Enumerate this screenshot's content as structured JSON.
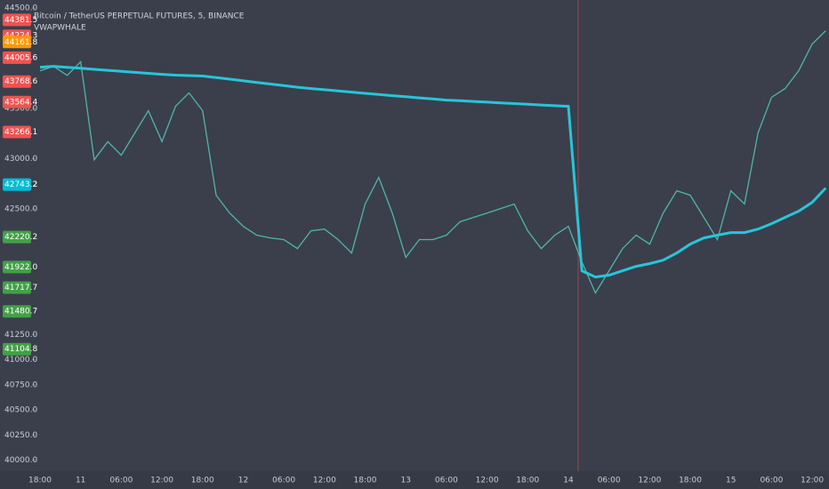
{
  "chart_data": {
    "type": "line",
    "title": "Bitcoin / TetherUS PERPETUAL FUTURES, 5, BINANCE",
    "subtitle": "VWAPWHALE",
    "categories": [
      "18:00",
      null,
      null,
      "11",
      null,
      null,
      "06:00",
      null,
      null,
      "12:00",
      null,
      null,
      "18:00",
      null,
      null,
      "12",
      null,
      null,
      "06:00",
      null,
      null,
      "12:00",
      null,
      null,
      "18:00",
      null,
      null,
      "13",
      null,
      null,
      "06:00",
      null,
      null,
      "12:00",
      null,
      null,
      "18:00",
      null,
      null,
      "14",
      null,
      null,
      "06:00",
      null,
      null,
      "12:00",
      null,
      null,
      "18:00",
      null,
      null,
      "15",
      null,
      null,
      "06:00",
      null,
      null,
      "12:00",
      null
    ],
    "series": [
      {
        "color": "#4db6ac",
        "values": [
          43876,
          43920,
          43830,
          43965,
          42990,
          43170,
          43035,
          43257,
          43478,
          43170,
          43522,
          43655,
          43478,
          42637,
          42460,
          42327,
          42239,
          42212,
          42195,
          42106,
          42283,
          42300,
          42195,
          42062,
          42549,
          42814,
          42460,
          42018,
          42195,
          42195,
          42239,
          42372,
          42416,
          42460,
          42504,
          42549,
          42283,
          42106,
          42239,
          42327,
          41973,
          41664,
          41885,
          42106,
          42239,
          42150,
          42460,
          42681,
          42637,
          42416,
          42195,
          42681,
          42549,
          43257,
          43611,
          43699,
          43876,
          44142,
          44274
        ]
      },
      {
        "color": "#26c6da",
        "values": [
          43911,
          43920,
          43910,
          43900,
          43890,
          43880,
          43870,
          43860,
          43850,
          43840,
          43832,
          43828,
          43823,
          43808,
          43792,
          43776,
          43760,
          43744,
          43728,
          43712,
          43699,
          43687,
          43675,
          43663,
          43651,
          43640,
          43628,
          43617,
          43606,
          43595,
          43584,
          43577,
          43570,
          43563,
          43556,
          43549,
          43542,
          43535,
          43528,
          43522,
          41885,
          41823,
          41841,
          41885,
          41929,
          41956,
          41991,
          42062,
          42150,
          42212,
          42239,
          42265,
          42265,
          42300,
          42354,
          42416,
          42478,
          42566,
          42708
        ]
      }
    ],
    "ylim": [
      39890,
      44580
    ],
    "yticks": [
      {
        "value": 40000,
        "label": "40000.0"
      },
      {
        "value": 40250,
        "label": "40250.0"
      },
      {
        "value": 40500,
        "label": "40500.0"
      },
      {
        "value": 40750,
        "label": "40750.0"
      },
      {
        "value": 41000,
        "label": "41000.0"
      },
      {
        "value": 41250,
        "label": "41250.0"
      },
      {
        "value": 42500,
        "label": "42500.0"
      },
      {
        "value": 43000,
        "label": "43000.0"
      },
      {
        "value": 43500,
        "label": "43500.0"
      },
      {
        "value": 44500,
        "label": "44500.0"
      }
    ],
    "price_tags": [
      {
        "value": 44381.5,
        "label": "44381.5",
        "color": "#ef5350"
      },
      {
        "value": 44224.3,
        "label": "44224.3",
        "color": "#ef5350"
      },
      {
        "value": 44161.8,
        "label": "44161.8",
        "color": "#ff9800"
      },
      {
        "value": 44005.6,
        "label": "44005.6",
        "color": "#ef5350"
      },
      {
        "value": 43768.6,
        "label": "43768.6",
        "color": "#ef5350"
      },
      {
        "value": 43564.4,
        "label": "43564.4",
        "color": "#ef5350"
      },
      {
        "value": 43266.1,
        "label": "43266.1",
        "color": "#ef5350"
      },
      {
        "value": 42743.2,
        "label": "42743.2",
        "color": "#2962ff"
      },
      {
        "value": 42743.2,
        "label": "42743.2",
        "color": "#00bcd4"
      },
      {
        "value": 42220.2,
        "label": "42220.2",
        "color": "#43a047"
      },
      {
        "value": 41922.0,
        "label": "41922.0",
        "color": "#43a047"
      },
      {
        "value": 41717.7,
        "label": "41717.7",
        "color": "#43a047"
      },
      {
        "value": 41480.7,
        "label": "41480.7",
        "color": "#43a047"
      },
      {
        "value": 41104.8,
        "label": "41104.8",
        "color": "#43a047"
      }
    ]
  }
}
